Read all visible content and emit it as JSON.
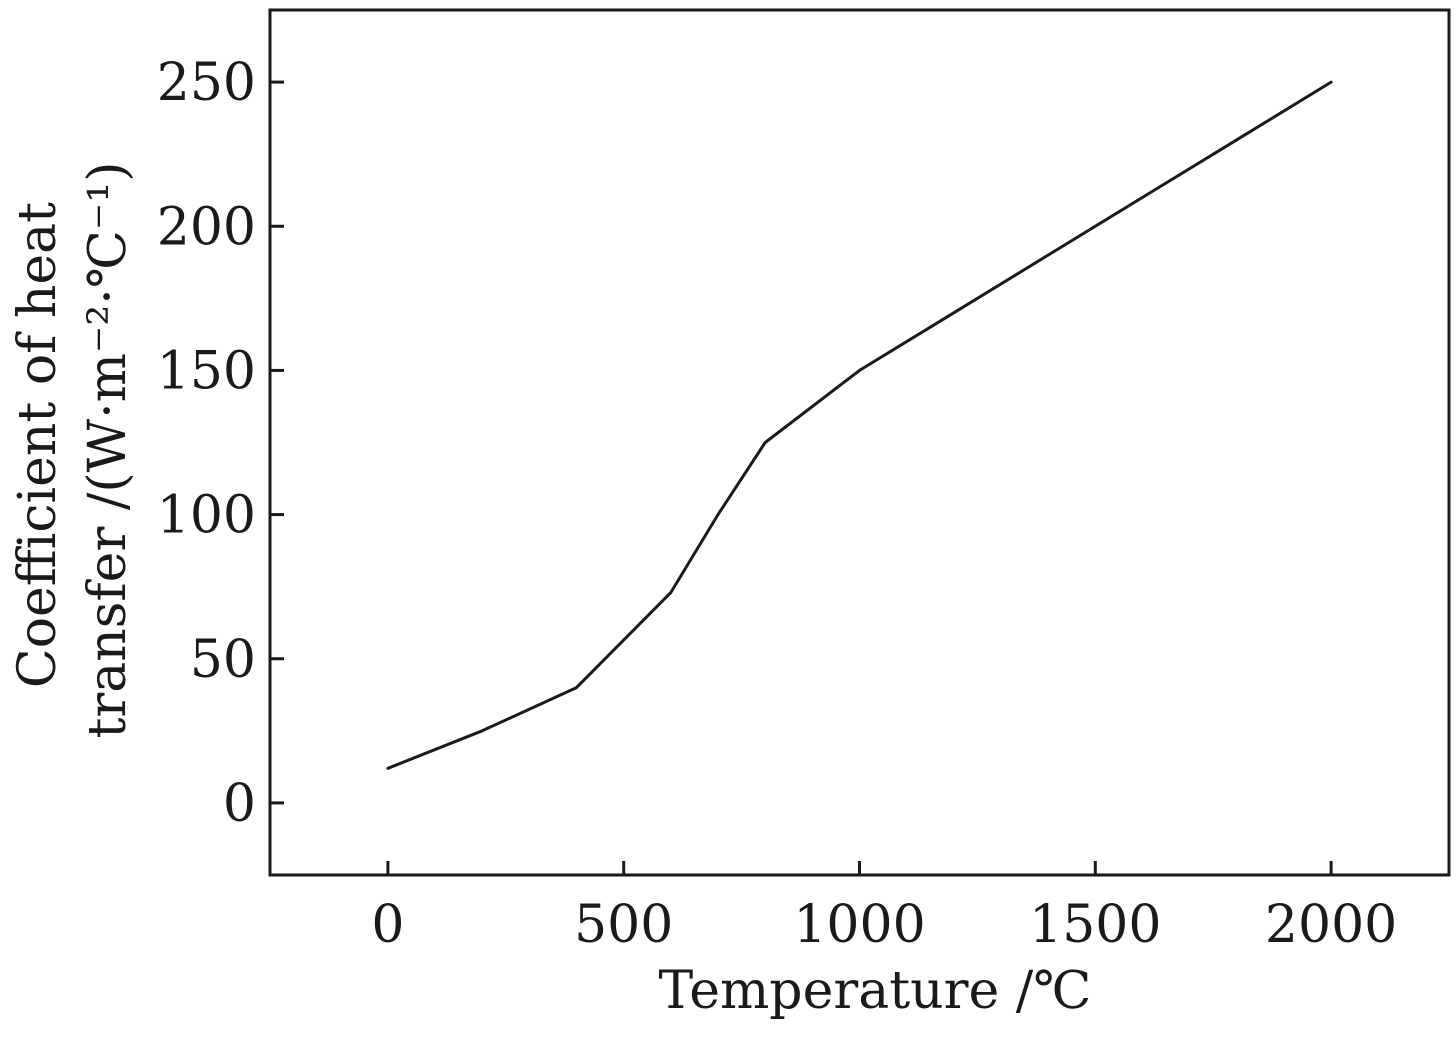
{
  "chart_data": {
    "type": "line",
    "title": "",
    "xlabel": "Temperature /℃",
    "ylabel_line1": "Coefficient of heat",
    "ylabel_line2": "transfer /(W·m⁻²·℃⁻¹)",
    "xlim": [
      -250,
      2250
    ],
    "ylim": [
      -25,
      275
    ],
    "x_ticks": [
      0,
      500,
      1000,
      1500,
      2000
    ],
    "y_ticks": [
      0,
      50,
      100,
      150,
      200,
      250
    ],
    "x_tick_labels": [
      "0",
      "500",
      "1000",
      "1500",
      "2000"
    ],
    "y_tick_labels": [
      "0",
      "50",
      "100",
      "150",
      "200",
      "250"
    ],
    "grid": false,
    "line_color": "#1a1a1a",
    "series": [
      {
        "x": [
          0,
          200,
          400,
          600,
          700,
          800,
          1000,
          1200,
          1400,
          1600,
          1800,
          2000
        ],
        "y": [
          12,
          25,
          40,
          73,
          100,
          125,
          150,
          170,
          190,
          210,
          230,
          250
        ]
      }
    ]
  }
}
